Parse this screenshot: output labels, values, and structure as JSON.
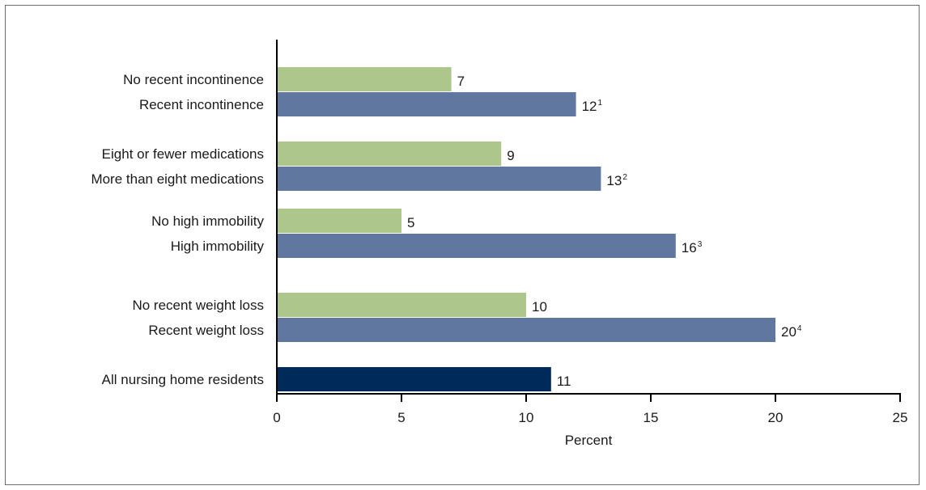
{
  "chart_data": {
    "type": "bar",
    "orientation": "horizontal",
    "title": "",
    "xlabel": "Percent",
    "ylabel": "",
    "xlim": [
      0,
      25
    ],
    "xticks": [
      0,
      5,
      10,
      15,
      20,
      25
    ],
    "grid": false,
    "colors": {
      "comparison": "#adc68c",
      "risk": "#60789f",
      "total": "#002a5a"
    },
    "bars": [
      {
        "label": "No recent incontinence",
        "value": 7,
        "display": "7",
        "sup": "",
        "color_key": "comparison"
      },
      {
        "label": "Recent incontinence",
        "value": 12,
        "display": "12",
        "sup": "1",
        "color_key": "risk"
      },
      {
        "label": "Eight or fewer medications",
        "value": 9,
        "display": "9",
        "sup": "",
        "color_key": "comparison"
      },
      {
        "label": "More than eight medications",
        "value": 13,
        "display": "13",
        "sup": "2",
        "color_key": "risk"
      },
      {
        "label": "No high immobility",
        "value": 5,
        "display": "5",
        "sup": "",
        "color_key": "comparison"
      },
      {
        "label": "High immobility",
        "value": 16,
        "display": "16",
        "sup": "3",
        "color_key": "risk"
      },
      {
        "label": "No recent weight loss",
        "value": 10,
        "display": "10",
        "sup": "",
        "color_key": "comparison"
      },
      {
        "label": "Recent weight loss",
        "value": 20,
        "display": "20",
        "sup": "4",
        "color_key": "risk"
      },
      {
        "label": "All nursing home residents",
        "value": 11,
        "display": "11",
        "sup": "",
        "color_key": "total"
      }
    ]
  }
}
